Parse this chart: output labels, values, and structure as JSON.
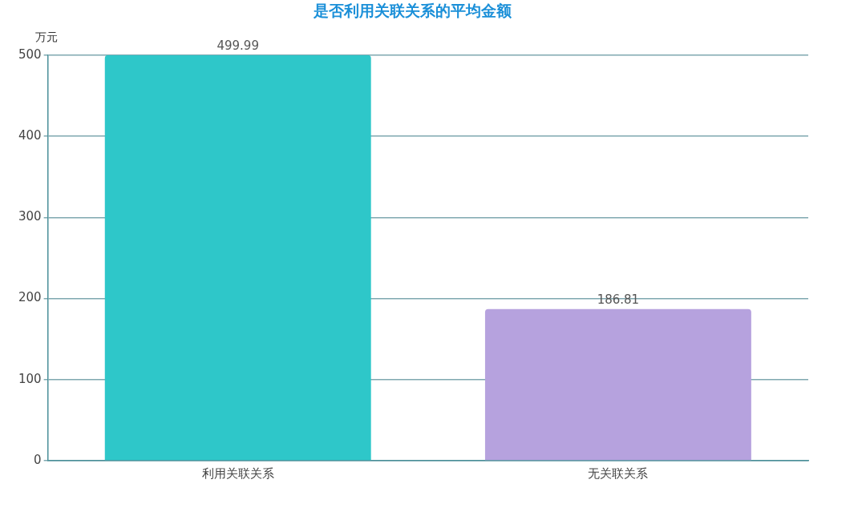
{
  "chart_data": {
    "type": "bar",
    "title": "是否利用关联关系的平均金额",
    "ylabel": "万元",
    "categories": [
      "利用关联关系",
      "无关联关系"
    ],
    "values": [
      499.99,
      186.81
    ],
    "colors": [
      "#2ec7c9",
      "#b6a2de"
    ],
    "ylim": [
      0,
      500
    ],
    "yticks": [
      0,
      100,
      200,
      300,
      400,
      500
    ],
    "grid": "y",
    "data_labels": true,
    "legend": false
  }
}
